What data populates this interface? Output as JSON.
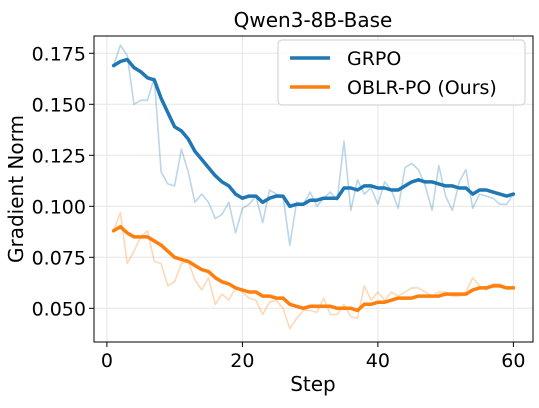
{
  "chart_data": {
    "type": "line",
    "title": "Qwen3-8B-Base",
    "xlabel": "Step",
    "ylabel": "Gradient Norm",
    "xlim": [
      -1.9,
      62.9
    ],
    "ylim": [
      0.0335,
      0.1835
    ],
    "xticks": [
      0,
      20,
      40,
      60
    ],
    "xtick_labels": [
      "0",
      "20",
      "40",
      "60"
    ],
    "yticks": [
      0.05,
      0.075,
      0.1,
      0.125,
      0.15,
      0.175
    ],
    "ytick_labels": [
      "0.050",
      "0.075",
      "0.100",
      "0.125",
      "0.150",
      "0.175"
    ],
    "grid": true,
    "legend_position": "top-right",
    "x": [
      1,
      2,
      3,
      4,
      5,
      6,
      7,
      8,
      9,
      10,
      11,
      12,
      13,
      14,
      15,
      16,
      17,
      18,
      19,
      20,
      21,
      22,
      23,
      24,
      25,
      26,
      27,
      28,
      29,
      30,
      31,
      32,
      33,
      34,
      35,
      36,
      37,
      38,
      39,
      40,
      41,
      42,
      43,
      44,
      45,
      46,
      47,
      48,
      49,
      50,
      51,
      52,
      53,
      54,
      55,
      56,
      57,
      58,
      59,
      60
    ],
    "series": [
      {
        "name": "GRPO",
        "color": "#1f77b4",
        "raw_values": [
          0.169,
          0.179,
          0.174,
          0.15,
          0.152,
          0.152,
          0.163,
          0.117,
          0.111,
          0.11,
          0.128,
          0.117,
          0.102,
          0.106,
          0.102,
          0.094,
          0.096,
          0.102,
          0.087,
          0.099,
          0.101,
          0.105,
          0.092,
          0.108,
          0.106,
          0.105,
          0.081,
          0.102,
          0.101,
          0.107,
          0.1,
          0.104,
          0.107,
          0.103,
          0.132,
          0.098,
          0.113,
          0.106,
          0.109,
          0.101,
          0.112,
          0.108,
          0.099,
          0.119,
          0.121,
          0.118,
          0.11,
          0.098,
          0.12,
          0.105,
          0.098,
          0.112,
          0.118,
          0.099,
          0.106,
          0.105,
          0.104,
          0.101,
          0.101,
          0.106
        ],
        "smoothed_values": [
          0.169,
          0.171,
          0.172,
          0.168,
          0.166,
          0.163,
          0.162,
          0.153,
          0.146,
          0.139,
          0.137,
          0.133,
          0.127,
          0.123,
          0.119,
          0.115,
          0.112,
          0.11,
          0.106,
          0.104,
          0.105,
          0.105,
          0.102,
          0.104,
          0.105,
          0.105,
          0.1,
          0.101,
          0.101,
          0.103,
          0.103,
          0.104,
          0.104,
          0.104,
          0.109,
          0.109,
          0.108,
          0.11,
          0.11,
          0.109,
          0.109,
          0.108,
          0.108,
          0.11,
          0.112,
          0.113,
          0.112,
          0.112,
          0.111,
          0.11,
          0.11,
          0.109,
          0.109,
          0.106,
          0.108,
          0.108,
          0.107,
          0.106,
          0.105,
          0.106
        ]
      },
      {
        "name": "OBLR-PO (Ours)",
        "color": "#ff7f0e",
        "raw_values": [
          0.088,
          0.097,
          0.072,
          0.078,
          0.085,
          0.088,
          0.073,
          0.072,
          0.061,
          0.063,
          0.072,
          0.073,
          0.064,
          0.059,
          0.065,
          0.052,
          0.057,
          0.054,
          0.06,
          0.058,
          0.055,
          0.054,
          0.047,
          0.053,
          0.054,
          0.05,
          0.04,
          0.045,
          0.049,
          0.049,
          0.048,
          0.055,
          0.047,
          0.047,
          0.052,
          0.046,
          0.045,
          0.061,
          0.054,
          0.058,
          0.054,
          0.058,
          0.056,
          0.058,
          0.06,
          0.06,
          0.058,
          0.056,
          0.058,
          0.058,
          0.056,
          0.056,
          0.058,
          0.065,
          0.061,
          0.059,
          0.062,
          0.062,
          0.06,
          0.061
        ],
        "smoothed_values": [
          0.088,
          0.09,
          0.087,
          0.085,
          0.085,
          0.085,
          0.083,
          0.081,
          0.078,
          0.075,
          0.074,
          0.073,
          0.071,
          0.069,
          0.068,
          0.065,
          0.063,
          0.062,
          0.06,
          0.059,
          0.058,
          0.058,
          0.056,
          0.056,
          0.055,
          0.055,
          0.052,
          0.051,
          0.05,
          0.051,
          0.051,
          0.051,
          0.051,
          0.05,
          0.05,
          0.05,
          0.049,
          0.052,
          0.052,
          0.053,
          0.053,
          0.054,
          0.055,
          0.055,
          0.055,
          0.056,
          0.056,
          0.056,
          0.056,
          0.057,
          0.057,
          0.057,
          0.057,
          0.059,
          0.06,
          0.06,
          0.061,
          0.061,
          0.06,
          0.06
        ]
      }
    ]
  }
}
